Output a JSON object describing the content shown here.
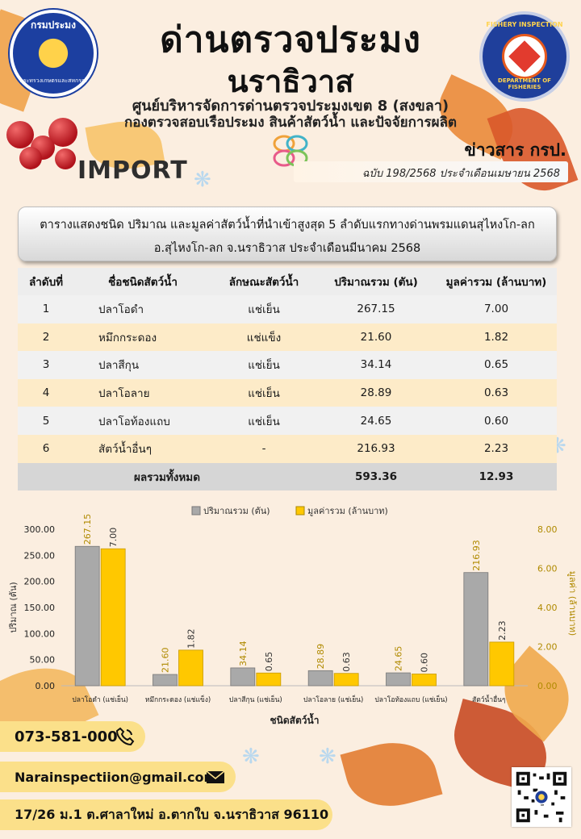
{
  "header": {
    "title_line1": "ด่านตรวจประมง",
    "title_line2": "นราธิวาส",
    "sub_line1": "ศูนย์บริหารจัดการด่านตรวจประมงเขต 8 (สงขลา)",
    "sub_line2": "กองตรวจสอบเรือประมง สินค้าสัตว์น้ำ และปัจจัยการผลิต",
    "logo_left_text": "กรมประมง",
    "logo_left_sub": "กระทรวงเกษตรและสหกรณ์",
    "logo_right_top": "FISHERY INSPECTION",
    "logo_right_bottom": "DEPARTMENT OF FISHERIES"
  },
  "news": {
    "title": "ข่าวสาร กรป.",
    "section": "IMPORT",
    "issue": "ฉบับ 198/2568 ประจำเดือนเมษายน  2568"
  },
  "caption": {
    "line1": "ตารางแสดงชนิด ปริมาณ และมูลค่าสัตว์น้ำที่นำเข้าสูงสุด 5 ลำดับแรกทางด่านพรมแดนสุไหงโก-ลก",
    "line2": "อ.สุไหงโก-ลก จ.นราธิวาส ประจำเดือนมีนาคม  2568"
  },
  "table": {
    "headers": [
      "ลำดับที่",
      "ชื่อชนิดสัตว์น้ำ",
      "ลักษณะสัตว์น้ำ",
      "ปริมาณรวม (ตัน)",
      "มูลค่ารวม (ล้านบาท)"
    ],
    "rows": [
      [
        "1",
        "ปลาโอดำ",
        "แช่เย็น",
        "267.15",
        "7.00"
      ],
      [
        "2",
        "หมึกกระดอง",
        "แช่แข็ง",
        "21.60",
        "1.82"
      ],
      [
        "3",
        "ปลาสีกุน",
        "แช่เย็น",
        "34.14",
        "0.65"
      ],
      [
        "4",
        "ปลาโอลาย",
        "แช่เย็น",
        "28.89",
        "0.63"
      ],
      [
        "5",
        "ปลาโอท้องแถบ",
        "แช่เย็น",
        "24.65",
        "0.60"
      ],
      [
        "6",
        "สัตว์น้ำอื่นๆ",
        "-",
        "216.93",
        "2.23"
      ]
    ],
    "total_label": "ผลรวมทั้งหมด",
    "total_qty": "593.36",
    "total_value": "12.93"
  },
  "chart_data": {
    "type": "bar",
    "categories": [
      "ปลาโอดำ (แช่เย็น)",
      "หมึกกระดอง (แช่แข็ง)",
      "ปลาสีกุน (แช่เย็น)",
      "ปลาโอลาย (แช่เย็น)",
      "ปลาโอท้องแถบ (แช่เย็น)",
      "สัตว์น้ำอื่นๆ"
    ],
    "series": [
      {
        "name": "ปริมาณรวม (ตัน)",
        "values": [
          267.15,
          21.6,
          34.14,
          28.89,
          24.65,
          216.93
        ],
        "labels": [
          "267.15",
          "21.60",
          "34.14",
          "28.89",
          "24.65",
          "216.93"
        ],
        "axis": "left",
        "color": "#a9a9a9"
      },
      {
        "name": "มูลค่ารวม (ล้านบาท)",
        "values": [
          7.0,
          1.82,
          0.65,
          0.63,
          0.6,
          2.23
        ],
        "labels": [
          "7.00",
          "1.82",
          "0.65",
          "0.63",
          "0.60",
          "2.23"
        ],
        "axis": "right",
        "color": "#ffc800"
      }
    ],
    "xlabel": "ชนิดสัตว์น้ำ",
    "ylabel": "ปริมาณ (ตัน)",
    "y2label": "มูลค่า (ล้านบาท)",
    "ylim": [
      0,
      300
    ],
    "y2lim": [
      0,
      8
    ],
    "yticks": [
      "0.00",
      "50.00",
      "100.00",
      "150.00",
      "200.00",
      "250.00",
      "300.00"
    ],
    "y2ticks": [
      "0.00",
      "2.00",
      "4.00",
      "6.00",
      "8.00"
    ],
    "legend_position": "top",
    "grid": false
  },
  "contact": {
    "phone": "073-581-000",
    "email": "Narainspectiion@gmail.com",
    "address": "17/26 ม.1 ต.ศาลาใหม่ อ.ตากใบ จ.นราธิวาส 96110"
  }
}
